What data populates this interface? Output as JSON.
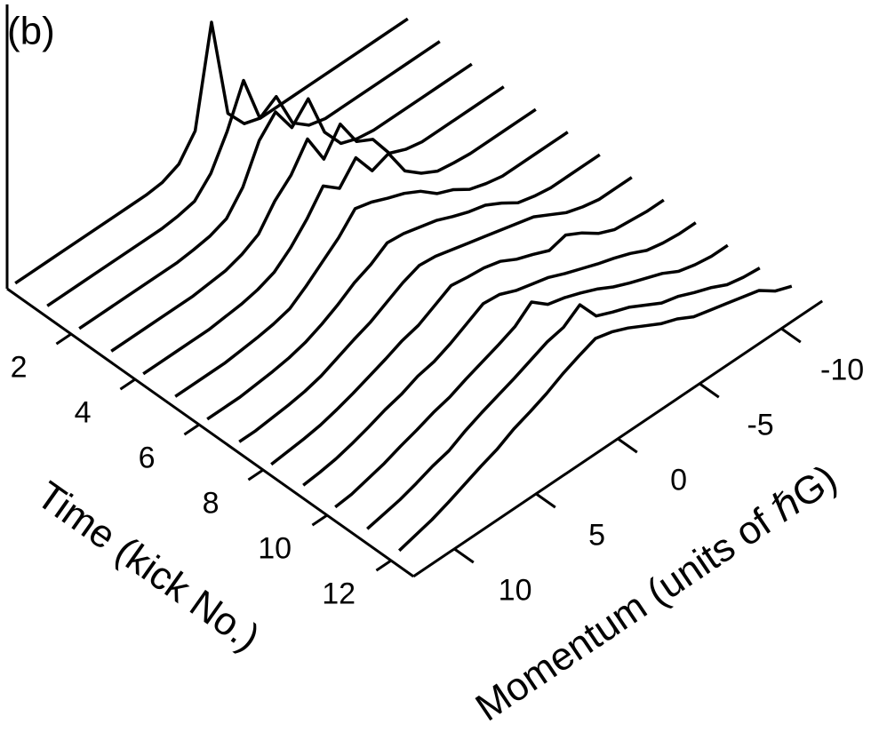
{
  "chart_data": {
    "type": "waterfall",
    "panel_label": "(b)",
    "xlabel": "Time (kick No.)",
    "ylabel": "Momentum (units of ℏG)",
    "xlim": [
      0,
      12.7
    ],
    "xticks": [
      2,
      4,
      6,
      8,
      10,
      12
    ],
    "ylim": [
      -12.5,
      12.5
    ],
    "yticks": [
      10,
      5,
      0,
      -5,
      -10
    ],
    "color": "#000000",
    "x": [
      12,
      11,
      10,
      9,
      8,
      7,
      6,
      5,
      4,
      3,
      2,
      1,
      0,
      -1,
      -2,
      -3,
      -4,
      -5,
      -6,
      -7,
      -8,
      -9,
      -10,
      -11,
      -12
    ],
    "series": [
      {
        "time": 0,
        "values": [
          0,
          0,
          0,
          0,
          0,
          0,
          0,
          0,
          0,
          0.02,
          0.1,
          0.35,
          1.45,
          0.3,
          0.06,
          0,
          0,
          0,
          0,
          0,
          0,
          0,
          0,
          0,
          0
        ]
      },
      {
        "time": 1,
        "values": [
          0,
          0,
          0,
          0,
          0,
          0,
          0,
          0,
          0.02,
          0.06,
          0.25,
          0.6,
          1.05,
          0.5,
          0.62,
          0.2,
          0.05,
          0,
          0,
          0,
          0,
          0,
          0,
          0,
          0
        ]
      },
      {
        "time": 2,
        "values": [
          0,
          0,
          0,
          0,
          0,
          0,
          0,
          0.02,
          0.05,
          0.12,
          0.35,
          0.75,
          0.95,
          0.65,
          0.85,
          0.35,
          0.1,
          0.03,
          0,
          0,
          0,
          0,
          0,
          0,
          0
        ]
      },
      {
        "time": 3,
        "values": [
          0,
          0,
          0,
          0,
          0,
          0,
          0.02,
          0.04,
          0.1,
          0.2,
          0.45,
          0.62,
          0.9,
          0.55,
          0.82,
          0.5,
          0.4,
          0.12,
          0.04,
          0,
          0,
          0,
          0,
          0,
          0
        ]
      },
      {
        "time": 4,
        "values": [
          0,
          0,
          0,
          0,
          0,
          0.02,
          0.04,
          0.08,
          0.15,
          0.3,
          0.5,
          0.75,
          0.6,
          0.82,
          0.55,
          0.62,
          0.3,
          0.15,
          0.05,
          0.02,
          0,
          0,
          0,
          0,
          0
        ]
      },
      {
        "time": 5,
        "values": [
          0,
          0,
          0,
          0,
          0.02,
          0.04,
          0.07,
          0.12,
          0.25,
          0.4,
          0.55,
          0.75,
          0.7,
          0.62,
          0.55,
          0.45,
          0.3,
          0.22,
          0.1,
          0.04,
          0,
          0,
          0,
          0,
          0
        ]
      },
      {
        "time": 6,
        "values": [
          0,
          0,
          0,
          0.02,
          0.04,
          0.07,
          0.12,
          0.2,
          0.3,
          0.42,
          0.5,
          0.62,
          0.6,
          0.55,
          0.5,
          0.42,
          0.35,
          0.3,
          0.2,
          0.08,
          0.03,
          0,
          0,
          0,
          0
        ]
      },
      {
        "time": 7,
        "values": [
          0,
          0,
          0.02,
          0.04,
          0.07,
          0.12,
          0.2,
          0.28,
          0.35,
          0.45,
          0.55,
          0.62,
          0.6,
          0.55,
          0.5,
          0.45,
          0.4,
          0.35,
          0.3,
          0.2,
          0.1,
          0.04,
          0,
          0,
          0
        ]
      },
      {
        "time": 8,
        "values": [
          0,
          0.02,
          0.04,
          0.07,
          0.12,
          0.18,
          0.25,
          0.32,
          0.4,
          0.45,
          0.55,
          0.65,
          0.62,
          0.6,
          0.55,
          0.45,
          0.38,
          0.3,
          0.35,
          0.25,
          0.12,
          0.04,
          0.02,
          0,
          0
        ]
      },
      {
        "time": 9,
        "values": [
          0.02,
          0.04,
          0.07,
          0.12,
          0.18,
          0.25,
          0.3,
          0.38,
          0.42,
          0.5,
          0.6,
          0.7,
          0.68,
          0.6,
          0.55,
          0.5,
          0.42,
          0.35,
          0.28,
          0.22,
          0.15,
          0.06,
          0.02,
          0,
          0
        ]
      },
      {
        "time": 10,
        "values": [
          0.03,
          0.05,
          0.1,
          0.15,
          0.22,
          0.28,
          0.35,
          0.4,
          0.48,
          0.55,
          0.62,
          0.7,
          0.85,
          0.7,
          0.65,
          0.58,
          0.5,
          0.4,
          0.32,
          0.25,
          0.18,
          0.08,
          0.03,
          0,
          0
        ]
      },
      {
        "time": 11,
        "values": [
          0.04,
          0.08,
          0.12,
          0.18,
          0.25,
          0.3,
          0.4,
          0.48,
          0.55,
          0.62,
          0.7,
          0.78,
          0.82,
          0.95,
          0.7,
          0.62,
          0.55,
          0.45,
          0.35,
          0.3,
          0.22,
          0.15,
          0.06,
          0.02,
          0
        ]
      },
      {
        "time": 12,
        "values": [
          0.05,
          0.1,
          0.15,
          0.22,
          0.3,
          0.38,
          0.45,
          0.55,
          0.62,
          0.7,
          0.8,
          0.88,
          0.95,
          0.9,
          0.82,
          0.72,
          0.62,
          0.55,
          0.45,
          0.4,
          0.35,
          0.3,
          0.25,
          0.12,
          0.05
        ]
      }
    ]
  }
}
